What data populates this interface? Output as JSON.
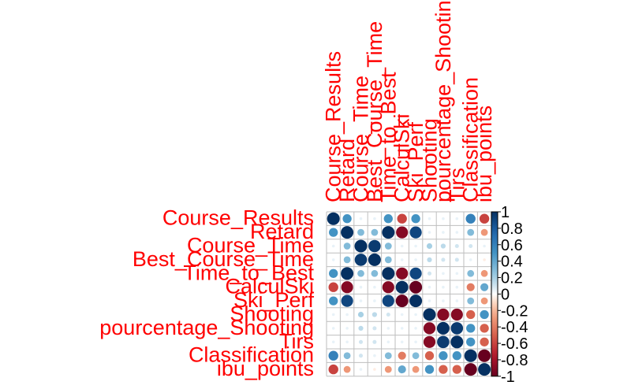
{
  "chart_data": {
    "type": "heatmap",
    "variables": [
      "Course_Results",
      "Retard",
      "Course_Time",
      "Best_Course_Time",
      "Time_to_Best",
      "CalculSki",
      "Ski_Perf",
      "Shooting",
      "pourcentage_Shooting",
      "Tirs",
      "Classification",
      "ibu_points"
    ],
    "row_labels": [
      "Course_Results",
      "Retard",
      "Course_Time",
      "Best_Course_Time",
      "Time_to_Best",
      "CalculSki",
      "Ski_Perf",
      "Shooting",
      "pourcentage_Shooting",
      "Tirs",
      "Classification",
      "ibu_points"
    ],
    "col_labels": [
      "Course_Results",
      "Retard",
      "Course_Time",
      "Best_Course_Time",
      "Time_to_Best",
      "CalculSki",
      "Ski_Perf",
      "Shooting",
      "pourcentage_Shooting",
      "Tirs",
      "Classification",
      "ibu_points"
    ],
    "matrix": [
      [
        1.0,
        0.5,
        0.05,
        0.05,
        0.5,
        -0.6,
        0.5,
        0.05,
        0.05,
        0.05,
        0.6,
        -0.6
      ],
      [
        0.5,
        1.0,
        0.3,
        0.3,
        1.0,
        -0.9,
        0.9,
        0.05,
        0.05,
        0.05,
        0.3,
        -0.3
      ],
      [
        0.05,
        0.3,
        1.0,
        0.95,
        0.3,
        0.05,
        0.05,
        0.2,
        0.15,
        0.1,
        0.1,
        0.05
      ],
      [
        0.05,
        0.3,
        0.95,
        1.0,
        0.3,
        0.05,
        0.05,
        0.15,
        0.1,
        0.1,
        0.05,
        -0.05
      ],
      [
        0.5,
        1.0,
        0.3,
        0.3,
        1.0,
        -0.9,
        0.9,
        0.1,
        0.05,
        0.05,
        0.3,
        -0.3
      ],
      [
        -0.6,
        -0.9,
        0.05,
        0.05,
        -0.9,
        1.0,
        -1.0,
        0.05,
        0.05,
        0.05,
        -0.4,
        0.4
      ],
      [
        0.5,
        0.9,
        0.05,
        0.05,
        0.9,
        -1.0,
        1.0,
        0.05,
        0.05,
        0.05,
        0.3,
        -0.3
      ],
      [
        0.05,
        0.05,
        0.2,
        0.15,
        0.1,
        0.05,
        0.05,
        1.0,
        -0.9,
        -0.9,
        -0.5,
        0.5
      ],
      [
        0.05,
        0.05,
        0.15,
        0.1,
        0.05,
        0.05,
        0.05,
        -0.9,
        1.0,
        0.95,
        0.5,
        -0.5
      ],
      [
        0.05,
        0.05,
        0.1,
        0.1,
        0.05,
        0.05,
        0.05,
        -0.9,
        0.95,
        1.0,
        0.5,
        -0.5
      ],
      [
        0.6,
        0.3,
        0.1,
        0.05,
        0.3,
        -0.4,
        0.3,
        -0.5,
        0.5,
        0.5,
        1.0,
        -1.0
      ],
      [
        -0.6,
        -0.3,
        0.05,
        -0.05,
        -0.3,
        0.4,
        -0.3,
        0.5,
        -0.5,
        -0.5,
        -1.0,
        1.0
      ]
    ],
    "colorbar_ticks": [
      "1",
      "0.8",
      "0.6",
      "0.4",
      "0.2",
      "0",
      "-0.2",
      "-0.4",
      "-0.6",
      "-0.8",
      "-1"
    ],
    "value_range": [
      -1,
      1
    ],
    "legend_position": "right",
    "colors": {
      "positive": "#053061",
      "neutral": "#ffffff",
      "negative": "#67001f",
      "label": "#ff0000",
      "grid": "#bebebe"
    }
  }
}
